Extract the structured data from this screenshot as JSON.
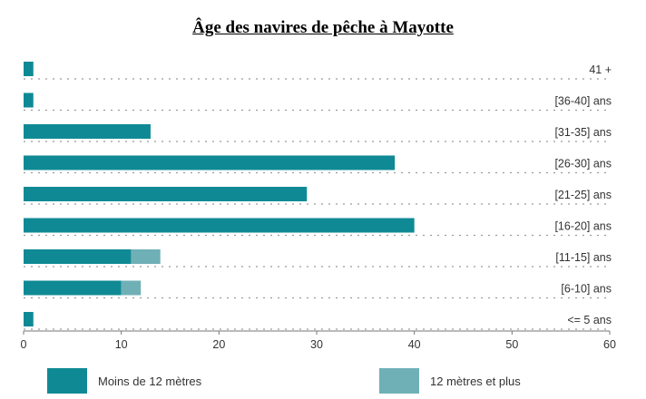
{
  "chart_data": {
    "type": "bar",
    "orientation": "horizontal",
    "stacked": true,
    "title": "Âge des navires de pêche à Mayotte",
    "categories": [
      "41 +",
      "[36-40] ans",
      "[31-35] ans",
      "[26-30] ans",
      "[21-25] ans",
      "[16-20] ans",
      "[11-15] ans",
      "[6-10] ans",
      "<= 5 ans"
    ],
    "series": [
      {
        "name": "Moins de 12 mètres",
        "color": "#0f8a94",
        "values": [
          1,
          1,
          13,
          38,
          29,
          40,
          11,
          10,
          1
        ]
      },
      {
        "name": "12 mètres et plus",
        "color": "#6fb0b6",
        "values": [
          0,
          0,
          0,
          0,
          0,
          0,
          3,
          2,
          0
        ]
      }
    ],
    "xlim": [
      0,
      60
    ],
    "xticks": [
      0,
      10,
      20,
      30,
      40,
      50,
      60
    ],
    "grid": "dotted-horizontal",
    "legend_position": "bottom"
  }
}
